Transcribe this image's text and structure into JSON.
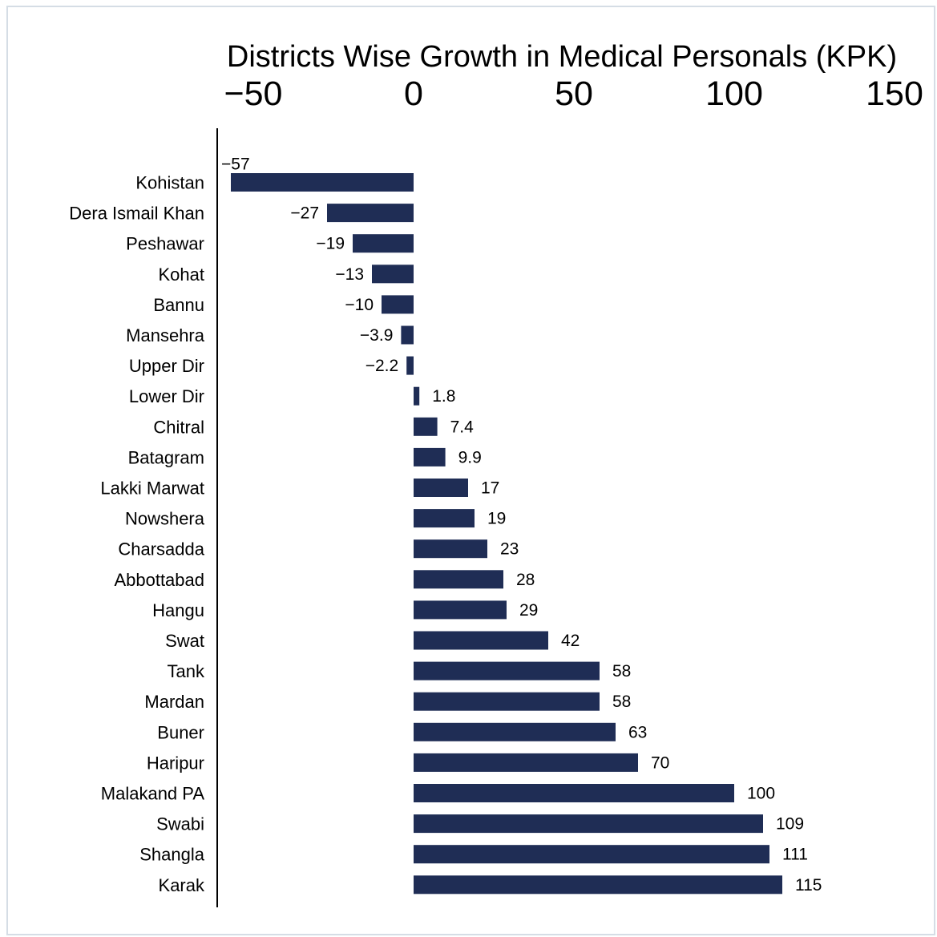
{
  "chart_data": {
    "type": "bar",
    "orientation": "horizontal",
    "title": "Districts Wise Growth in Medical Personals (KPK)",
    "xlabel": "",
    "ylabel": "",
    "xlim": [
      -57,
      150
    ],
    "xticks": [
      -50,
      0,
      50,
      100,
      150
    ],
    "xtick_labels": [
      "−50",
      "0",
      "50",
      "100",
      "150"
    ],
    "x_axis_position": "top",
    "grid": false,
    "bar_color": "#1f2d55",
    "categories": [
      "Kohistan",
      "Dera Ismail Khan",
      "Peshawar",
      "Kohat",
      "Bannu",
      "Mansehra",
      "Upper Dir",
      "Lower Dir",
      "Chitral",
      "Batagram",
      "Lakki Marwat",
      "Nowshera",
      "Charsadda",
      "Abbottabad",
      "Hangu",
      "Swat",
      "Tank",
      "Mardan",
      "Buner",
      "Haripur",
      "Malakand PA",
      "Swabi",
      "Shangla",
      "Karak"
    ],
    "values": [
      -57,
      -27,
      -19,
      -13,
      -10,
      -3.9,
      -2.2,
      1.8,
      7.4,
      9.9,
      17,
      19,
      23,
      28,
      29,
      42,
      58,
      58,
      63,
      70,
      100,
      109,
      111,
      115
    ],
    "data_labels": [
      "−57",
      "−27",
      "−19",
      "−13",
      "−10",
      "−3.9",
      "−2.2",
      "1.8",
      "7.4",
      "9.9",
      "17",
      "19",
      "23",
      "28",
      "29",
      "42",
      "58",
      "58",
      "63",
      "70",
      "100",
      "109",
      "111",
      "115"
    ]
  }
}
